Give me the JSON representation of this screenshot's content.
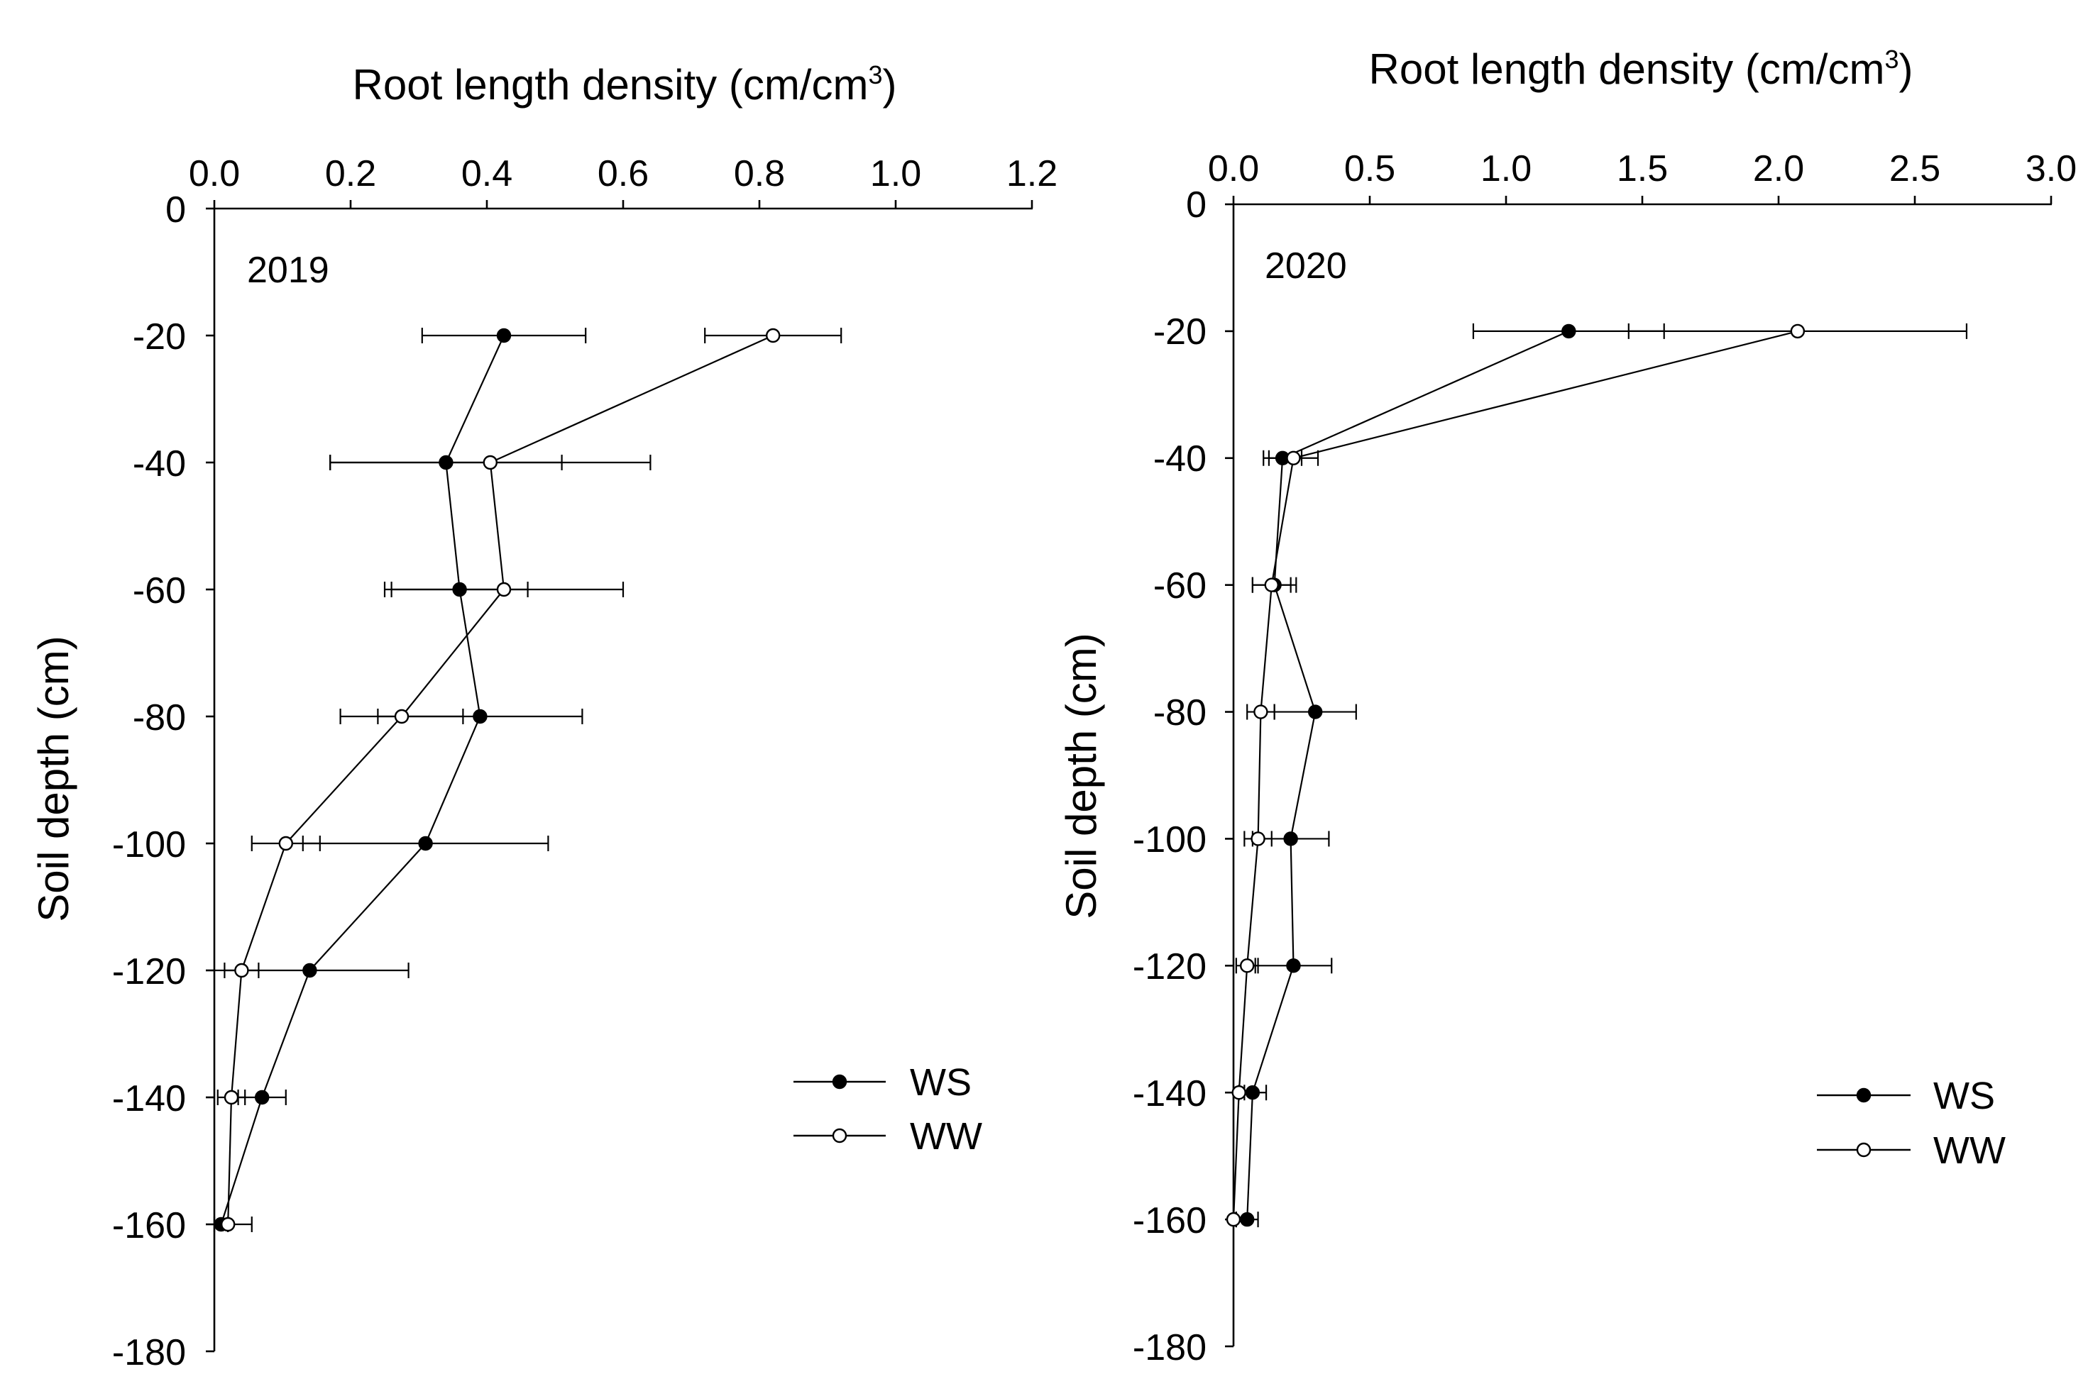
{
  "figure": {
    "panels": [
      {
        "id": "2019",
        "year_label": "2019",
        "x_title_main": "Root length density (cm/cm",
        "x_title_sup": "3",
        "x_title_end": ")",
        "y_title": "Soil depth (cm)",
        "x_ticks": [
          "0.0",
          "0.2",
          "0.4",
          "0.6",
          "0.8",
          "1.0",
          "1.2"
        ],
        "y_ticks": [
          "0",
          "-20",
          "-40",
          "-60",
          "-80",
          "-100",
          "-120",
          "-140",
          "-160",
          "-180"
        ],
        "legend": [
          "WS",
          "WW"
        ]
      },
      {
        "id": "2020",
        "year_label": "2020",
        "x_title_main": "Root length density (cm/cm",
        "x_title_sup": "3",
        "x_title_end": ")",
        "y_title": "Soil depth (cm)",
        "x_ticks": [
          "0.0",
          "0.5",
          "1.0",
          "1.5",
          "2.0",
          "2.5",
          "3.0"
        ],
        "y_ticks": [
          "0",
          "-20",
          "-40",
          "-60",
          "-80",
          "-100",
          "-120",
          "-140",
          "-160",
          "-180"
        ],
        "legend": [
          "WS",
          "WW"
        ]
      }
    ]
  },
  "colors": {
    "ink": "#000000",
    "open_marker_fill": "#ffffff"
  },
  "chart_data": [
    {
      "type": "line",
      "title": "2019",
      "xlabel": "Root length density (cm/cm3)",
      "ylabel": "Soil depth (cm)",
      "xlim": [
        0,
        1.2
      ],
      "ylim": [
        -180,
        0
      ],
      "x_axis_position": "top",
      "legend_position": "bottom-right",
      "series": [
        {
          "name": "WS",
          "marker": "filled-circle",
          "depth": [
            -20,
            -40,
            -60,
            -80,
            -100,
            -120,
            -140,
            -160
          ],
          "values": [
            0.425,
            0.34,
            0.36,
            0.39,
            0.31,
            0.14,
            0.07,
            0.01
          ],
          "error": [
            0.12,
            0.17,
            0.1,
            0.15,
            0.18,
            0.145,
            0.035,
            0.01
          ]
        },
        {
          "name": "WW",
          "marker": "open-circle",
          "depth": [
            -20,
            -40,
            -60,
            -80,
            -100,
            -120,
            -140,
            -160
          ],
          "values": [
            0.82,
            0.405,
            0.425,
            0.275,
            0.105,
            0.04,
            0.025,
            0.02
          ],
          "error": [
            0.1,
            0.235,
            0.175,
            0.09,
            0.05,
            0.025,
            0.02,
            0.035
          ]
        }
      ]
    },
    {
      "type": "line",
      "title": "2020",
      "xlabel": "Root length density (cm/cm3)",
      "ylabel": "Soil depth (cm)",
      "xlim": [
        0,
        3.0
      ],
      "ylim": [
        -180,
        0
      ],
      "x_axis_position": "top",
      "legend_position": "bottom-right",
      "series": [
        {
          "name": "WS",
          "marker": "filled-circle",
          "depth": [
            -20,
            -40,
            -60,
            -80,
            -100,
            -120,
            -140,
            -160
          ],
          "values": [
            1.23,
            0.18,
            0.15,
            0.3,
            0.21,
            0.22,
            0.07,
            0.05
          ],
          "error": [
            0.35,
            0.07,
            0.08,
            0.15,
            0.14,
            0.14,
            0.05,
            0.04
          ]
        },
        {
          "name": "WW",
          "marker": "open-circle",
          "depth": [
            -20,
            -40,
            -60,
            -80,
            -100,
            -120,
            -140,
            -160
          ],
          "values": [
            2.07,
            0.22,
            0.14,
            0.1,
            0.09,
            0.05,
            0.02,
            0.0
          ],
          "error": [
            0.62,
            0.09,
            0.07,
            0.05,
            0.05,
            0.04,
            0.02,
            0.01
          ]
        }
      ]
    }
  ]
}
